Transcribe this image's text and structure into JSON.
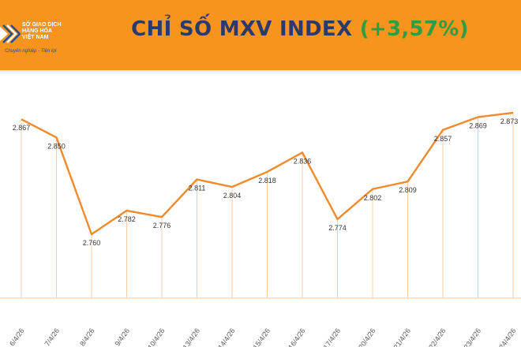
{
  "header": {
    "title": "CHỈ SỐ MXV INDEX",
    "change": "(+3,57%)",
    "logo": {
      "name_lines": [
        "SỞ GIAO DỊCH",
        "HÀNG HÓA",
        "VIỆT NAM"
      ],
      "slogan": "Chuyên nghiệp - Tiện lợi",
      "icon": "mxv-logo-icon"
    },
    "colors": {
      "band": "#f7941d",
      "title": "#2b3a6b",
      "change": "#2e9e44"
    }
  },
  "chart_data": {
    "type": "line",
    "title": "CHỈ SỐ MXV INDEX",
    "categories": [
      "6/4/26",
      "7/4/26",
      "8/4/26",
      "9/4/26",
      "10/4/26",
      "13/4/26",
      "14/4/26",
      "15/4/26",
      "16/4/26",
      "17/4/26",
      "20/4/26",
      "21/4/26",
      "22/4/26",
      "23/4/26",
      "24/4/26"
    ],
    "values": [
      2867,
      2850,
      2760,
      2782,
      2776,
      2811,
      2804,
      2818,
      2836,
      2774,
      2802,
      2809,
      2857,
      2869,
      2873
    ],
    "labels": [
      "2.867",
      "2.850",
      "2.760",
      "2.782",
      "2.776",
      "2.811",
      "2.804",
      "2.818",
      "2.836",
      "2.774",
      "2.802",
      "2.809",
      "2.857",
      "2.869",
      "2.873"
    ],
    "xlabel": "",
    "ylabel": "",
    "grid": false,
    "drop_lines": true,
    "color": "#f08a2b"
  }
}
